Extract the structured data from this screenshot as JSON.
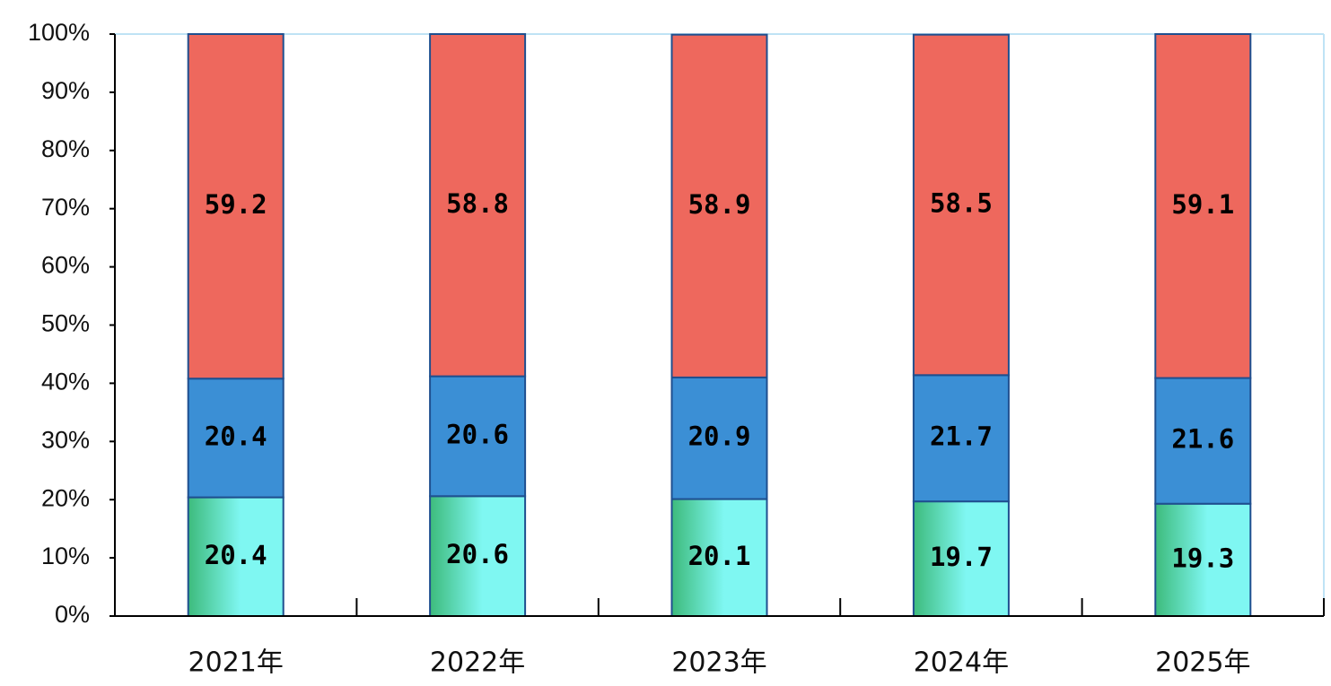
{
  "chart_data": {
    "type": "bar",
    "stacked": true,
    "categories": [
      "2021年",
      "2022年",
      "2023年",
      "2024年",
      "2025年"
    ],
    "series": [
      {
        "color": "#7ff7f2",
        "values": [
          20.4,
          20.6,
          20.1,
          19.7,
          19.3
        ]
      },
      {
        "color": "#3b8fd5",
        "values": [
          20.4,
          20.6,
          20.9,
          21.7,
          21.6
        ]
      },
      {
        "color": "#ee685d",
        "values": [
          59.2,
          58.8,
          58.9,
          58.5,
          59.1
        ]
      }
    ],
    "ylim": [
      0,
      100
    ],
    "yticks": [
      {
        "value": 0,
        "label": "0%"
      },
      {
        "value": 10,
        "label": "10%"
      },
      {
        "value": 20,
        "label": "20%"
      },
      {
        "value": 30,
        "label": "30%"
      },
      {
        "value": 40,
        "label": "40%"
      },
      {
        "value": 50,
        "label": "50%"
      },
      {
        "value": 60,
        "label": "60%"
      },
      {
        "value": 70,
        "label": "70%"
      },
      {
        "value": 80,
        "label": "80%"
      },
      {
        "value": 90,
        "label": "90%"
      },
      {
        "value": 100,
        "label": "100%"
      }
    ],
    "grid": false
  }
}
